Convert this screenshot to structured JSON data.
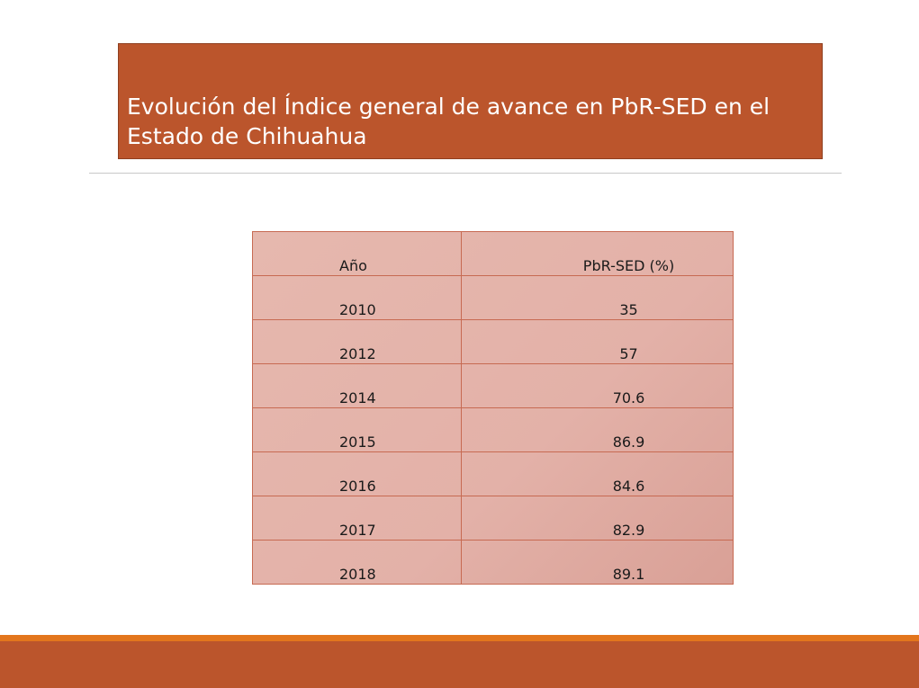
{
  "slide": {
    "title": "Evolución del Índice general de avance en PbR-SED en el Estado de Chihuahua"
  },
  "table": {
    "headers": [
      "Año",
      "PbR-SED (%)"
    ],
    "rows": [
      [
        "2010",
        "35"
      ],
      [
        "2012",
        "57"
      ],
      [
        "2014",
        "70.6"
      ],
      [
        "2015",
        "86.9"
      ],
      [
        "2016",
        "84.6"
      ],
      [
        "2017",
        "82.9"
      ],
      [
        "2018",
        "89.1"
      ]
    ]
  },
  "colors": {
    "title_background": "#bb552c",
    "table_fill": "#e6b8ae",
    "table_border": "#c76a52",
    "footer_accent": "#e3761d",
    "footer_bar": "#bb552c"
  }
}
